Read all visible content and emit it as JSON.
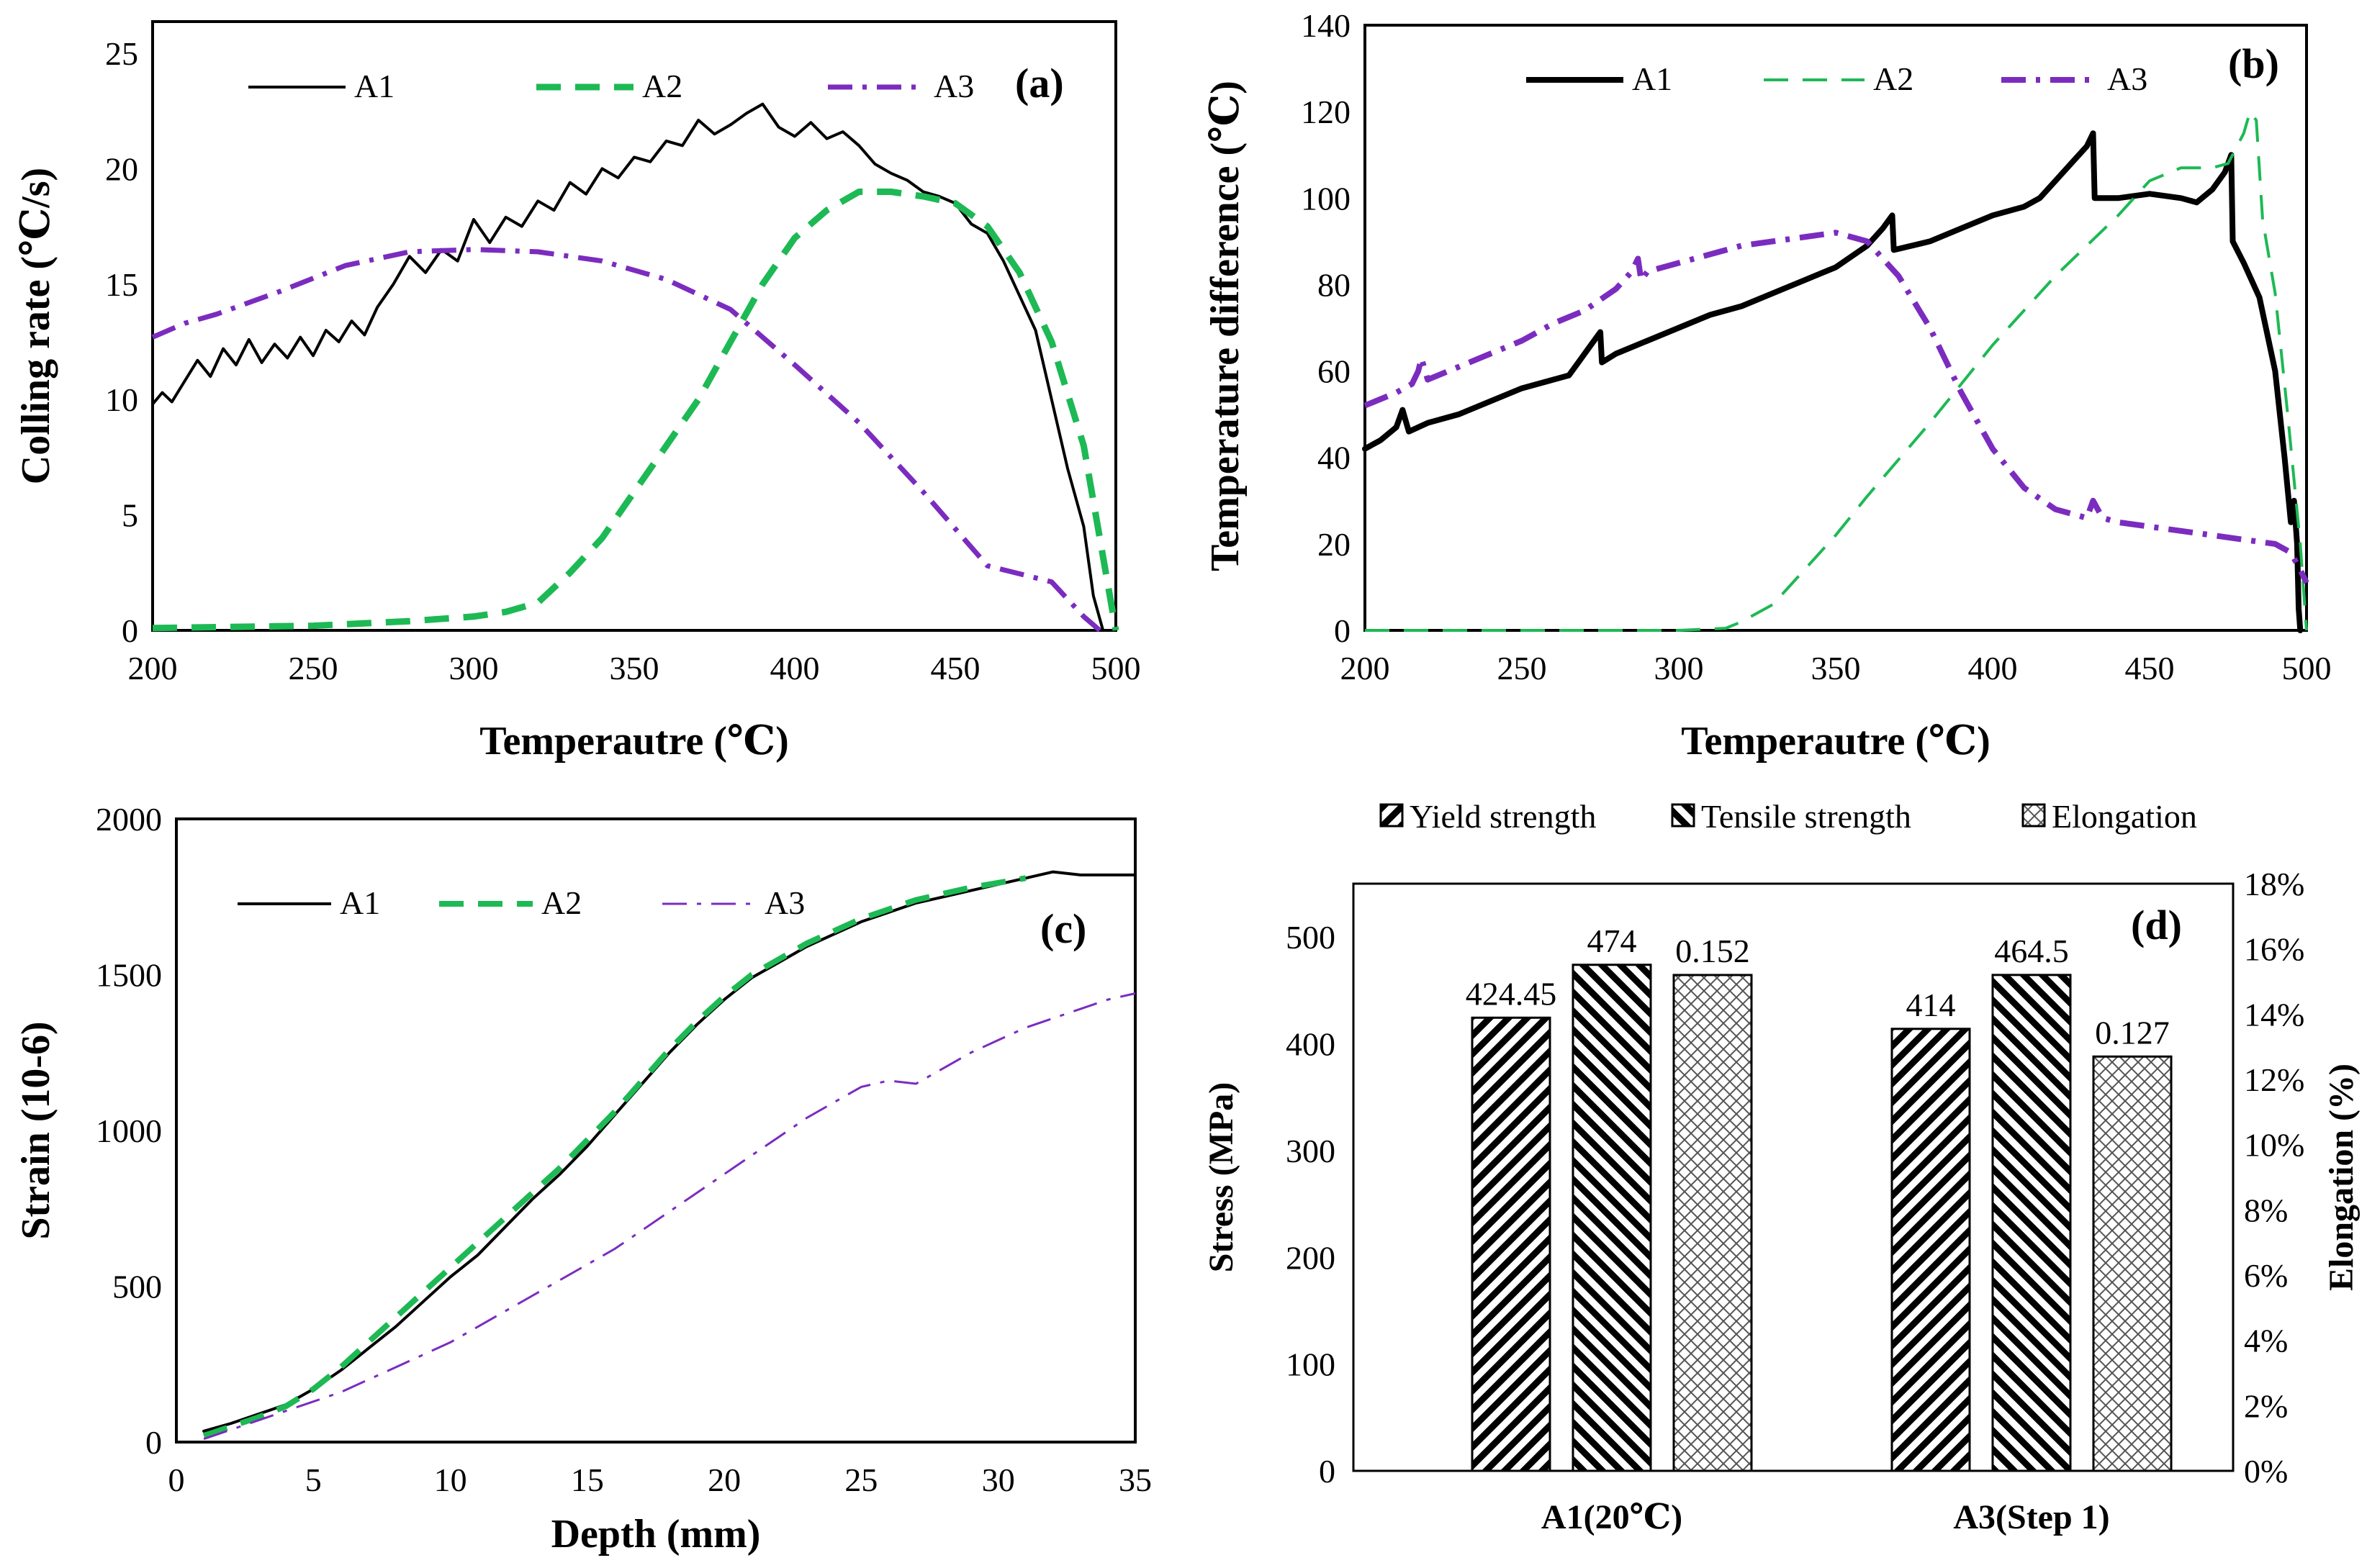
{
  "chart_data": [
    {
      "id": "a",
      "type": "line",
      "tag": "(a)",
      "xlabel": "Temperautre (℃)",
      "ylabel": "Colling rate (℃/s)",
      "xlim": [
        200,
        500
      ],
      "ylim": [
        0,
        25
      ],
      "xticks": [
        200,
        250,
        300,
        350,
        400,
        450,
        500
      ],
      "yticks": [
        0,
        5,
        10,
        15,
        20,
        25
      ],
      "legend": [
        "A1",
        "A2",
        "A3"
      ],
      "series": [
        {
          "name": "A1",
          "color": "#000000",
          "style": "solid",
          "x": [
            200,
            203,
            206,
            210,
            214,
            218,
            222,
            226,
            230,
            234,
            238,
            242,
            246,
            250,
            254,
            258,
            262,
            266,
            270,
            275,
            280,
            285,
            290,
            295,
            300,
            305,
            310,
            315,
            320,
            325,
            330,
            335,
            340,
            345,
            350,
            355,
            360,
            365,
            370,
            375,
            380,
            385,
            390,
            395,
            400,
            405,
            410,
            415,
            420,
            425,
            430,
            435,
            440,
            445,
            450,
            455,
            460,
            465,
            470,
            475,
            480,
            485,
            490,
            493,
            496
          ],
          "y": [
            9.8,
            10.3,
            9.9,
            10.8,
            11.7,
            11.0,
            12.2,
            11.5,
            12.6,
            11.6,
            12.4,
            11.8,
            12.7,
            11.9,
            13.0,
            12.5,
            13.4,
            12.8,
            14.0,
            15.0,
            16.2,
            15.5,
            16.5,
            16.0,
            17.8,
            16.8,
            17.9,
            17.5,
            18.6,
            18.2,
            19.4,
            18.9,
            20.0,
            19.6,
            20.5,
            20.3,
            21.2,
            21.0,
            22.1,
            21.5,
            21.9,
            22.4,
            22.8,
            21.8,
            21.4,
            22.0,
            21.3,
            21.6,
            21.0,
            20.2,
            19.8,
            19.5,
            19.0,
            18.8,
            18.5,
            17.6,
            17.2,
            16.0,
            14.5,
            13.0,
            10.0,
            7.0,
            4.5,
            1.5,
            0
          ]
        },
        {
          "name": "A2",
          "color": "#1db954",
          "style": "dashed",
          "x": [
            200,
            250,
            280,
            300,
            310,
            320,
            330,
            340,
            350,
            360,
            370,
            380,
            390,
            400,
            410,
            420,
            430,
            440,
            450,
            460,
            470,
            480,
            490,
            495,
            500
          ],
          "y": [
            0.1,
            0.2,
            0.4,
            0.6,
            0.8,
            1.2,
            2.5,
            4.0,
            6.0,
            8.0,
            10.0,
            12.5,
            15.0,
            17.0,
            18.2,
            19.0,
            19.0,
            18.8,
            18.5,
            17.5,
            15.5,
            12.5,
            8.0,
            4.0,
            0
          ]
        },
        {
          "name": "A3",
          "color": "#7b2cbf",
          "style": "dashdot",
          "x": [
            200,
            210,
            220,
            240,
            260,
            280,
            300,
            320,
            340,
            360,
            380,
            400,
            420,
            440,
            460,
            480,
            490,
            495
          ],
          "y": [
            12.7,
            13.3,
            13.7,
            14.7,
            15.8,
            16.4,
            16.5,
            16.4,
            16.0,
            15.2,
            13.9,
            11.5,
            9.0,
            6.0,
            2.8,
            2.1,
            0.6,
            0
          ]
        }
      ]
    },
    {
      "id": "b",
      "type": "line",
      "tag": "(b)",
      "xlabel": "Temperautre (℃)",
      "ylabel": "Temperature  difference  (℃)",
      "xlim": [
        200,
        500
      ],
      "ylim": [
        0,
        140
      ],
      "xticks": [
        200,
        250,
        300,
        350,
        400,
        450,
        500
      ],
      "yticks": [
        0,
        20,
        40,
        60,
        80,
        100,
        120,
        140
      ],
      "legend": [
        "A1",
        "A2",
        "A3"
      ],
      "series": [
        {
          "name": "A1",
          "color": "#000000",
          "style": "solid",
          "x": [
            200,
            205,
            210,
            212,
            214,
            220,
            230,
            240,
            250,
            260,
            265,
            268,
            272,
            275,
            275.5,
            280,
            290,
            300,
            310,
            320,
            330,
            340,
            350,
            360,
            365,
            368,
            368.5,
            380,
            390,
            400,
            410,
            415,
            420,
            425,
            430,
            432,
            432.5,
            440,
            450,
            460,
            465,
            470,
            474,
            476,
            476.5,
            480,
            485,
            490,
            493,
            495,
            496,
            497,
            497.5,
            498
          ],
          "y": [
            42,
            44,
            47,
            51,
            46,
            48,
            50,
            53,
            56,
            58,
            59,
            62,
            66,
            69,
            62,
            64,
            67,
            70,
            73,
            75,
            78,
            81,
            84,
            89,
            93,
            96,
            88,
            90,
            93,
            96,
            98,
            100,
            104,
            108,
            112,
            115,
            100,
            100,
            101,
            100,
            99,
            102,
            106,
            110,
            90,
            85,
            77,
            60,
            40,
            25,
            30,
            20,
            5,
            0
          ]
        },
        {
          "name": "A2",
          "color": "#1db954",
          "style": "dashed",
          "x": [
            200,
            250,
            300,
            315,
            320,
            330,
            340,
            350,
            360,
            380,
            400,
            420,
            440,
            450,
            460,
            470,
            475,
            480,
            482,
            484,
            486,
            490,
            494,
            498,
            500
          ],
          "y": [
            0,
            0,
            0,
            0.5,
            2,
            6,
            14,
            22,
            31,
            48,
            66,
            82,
            96,
            104,
            107,
            107,
            108,
            115,
            120,
            118,
            95,
            78,
            50,
            20,
            0
          ]
        },
        {
          "name": "A3",
          "color": "#7b2cbf",
          "style": "dashdot",
          "x": [
            200,
            210,
            215,
            217,
            218,
            220,
            230,
            240,
            250,
            260,
            270,
            280,
            285,
            287,
            288,
            290,
            300,
            310,
            320,
            330,
            340,
            350,
            355,
            360,
            370,
            380,
            390,
            400,
            410,
            420,
            430,
            432,
            435,
            440,
            450,
            460,
            470,
            480,
            490,
            495,
            498,
            500
          ],
          "y": [
            52,
            55,
            57,
            60,
            63,
            58,
            61,
            64,
            67,
            71,
            74,
            79,
            83,
            86,
            81,
            83,
            85,
            87,
            89,
            90,
            91,
            92,
            91,
            90,
            82,
            70,
            55,
            42,
            33,
            28,
            26,
            30,
            26,
            25,
            24,
            23,
            22,
            21,
            20,
            18,
            14,
            11
          ]
        }
      ]
    },
    {
      "id": "c",
      "type": "line",
      "tag": "(c)",
      "xlabel": "Depth (mm)",
      "ylabel": "Strain (10-6)",
      "xlim": [
        0,
        35
      ],
      "ylim": [
        0,
        2000
      ],
      "xticks": [
        0,
        5,
        10,
        15,
        20,
        25,
        30,
        35
      ],
      "yticks": [
        0,
        500,
        1000,
        1500,
        2000
      ],
      "legend": [
        "A1",
        "A2",
        "A3"
      ],
      "series": [
        {
          "name": "A1",
          "color": "#000000",
          "style": "solid",
          "x": [
            1,
            2,
            3,
            4,
            5,
            6,
            7,
            8,
            9,
            10,
            11,
            12,
            13,
            14,
            15,
            16,
            17,
            18,
            19,
            20,
            21,
            22,
            23,
            24,
            25,
            26,
            27,
            28,
            29,
            30,
            31,
            32,
            33,
            34,
            35
          ],
          "y": [
            35,
            60,
            90,
            120,
            170,
            230,
            300,
            370,
            450,
            530,
            600,
            690,
            780,
            860,
            950,
            1050,
            1150,
            1250,
            1340,
            1420,
            1490,
            1540,
            1590,
            1630,
            1670,
            1700,
            1730,
            1750,
            1770,
            1790,
            1810,
            1830,
            1820,
            1820,
            1820
          ]
        },
        {
          "name": "A2",
          "color": "#1db954",
          "style": "dashed",
          "x": [
            1,
            2,
            3,
            4,
            5,
            6,
            7,
            8,
            9,
            10,
            11,
            12,
            13,
            14,
            15,
            16,
            17,
            18,
            19,
            20,
            21,
            22,
            23,
            24,
            25,
            26,
            27,
            28,
            29,
            30,
            31
          ],
          "y": [
            20,
            50,
            80,
            115,
            170,
            240,
            320,
            400,
            480,
            560,
            640,
            720,
            800,
            880,
            970,
            1060,
            1160,
            1260,
            1350,
            1430,
            1500,
            1550,
            1600,
            1640,
            1680,
            1710,
            1740,
            1760,
            1780,
            1795,
            1810
          ]
        },
        {
          "name": "A3",
          "color": "#7b2cbf",
          "style": "dashdot",
          "x": [
            1,
            2,
            3,
            4,
            5,
            6,
            7,
            8,
            9,
            10,
            11,
            12,
            13,
            14,
            15,
            16,
            17,
            18,
            19,
            20,
            21,
            22,
            23,
            24,
            25,
            26,
            27,
            28,
            29,
            30,
            31,
            32,
            33,
            34,
            35
          ],
          "y": [
            10,
            40,
            70,
            100,
            130,
            160,
            200,
            240,
            280,
            320,
            370,
            420,
            470,
            520,
            570,
            620,
            680,
            740,
            800,
            860,
            920,
            980,
            1040,
            1090,
            1140,
            1160,
            1150,
            1200,
            1250,
            1290,
            1330,
            1360,
            1390,
            1420,
            1440
          ]
        }
      ]
    },
    {
      "id": "d",
      "type": "bar",
      "tag": "(d)",
      "categories": [
        "A1(20℃)",
        "A3(Step 1)"
      ],
      "ylabel": "Stress (MPa)",
      "y2label": "Elongation (%)",
      "ylim": [
        0,
        550
      ],
      "yticks": [
        0,
        100,
        200,
        300,
        400,
        500
      ],
      "y2lim": [
        0,
        0.18
      ],
      "y2ticks": [
        "0%",
        "2%",
        "4%",
        "6%",
        "8%",
        "10%",
        "12%",
        "14%",
        "16%",
        "18%"
      ],
      "legend": [
        "Yield strength",
        "Tensile strength",
        "Elongation"
      ],
      "series": [
        {
          "name": "Yield strength",
          "axis": "left",
          "pattern": "fwd",
          "values": [
            424.45,
            414
          ],
          "labels": [
            "424.45",
            "414"
          ]
        },
        {
          "name": "Tensile strength",
          "axis": "left",
          "pattern": "back",
          "values": [
            474,
            464.5
          ],
          "labels": [
            "474",
            "464.5"
          ]
        },
        {
          "name": "Elongation",
          "axis": "right",
          "pattern": "dots",
          "values": [
            0.152,
            0.127
          ],
          "labels": [
            "0.152",
            "0.127"
          ]
        }
      ]
    }
  ]
}
